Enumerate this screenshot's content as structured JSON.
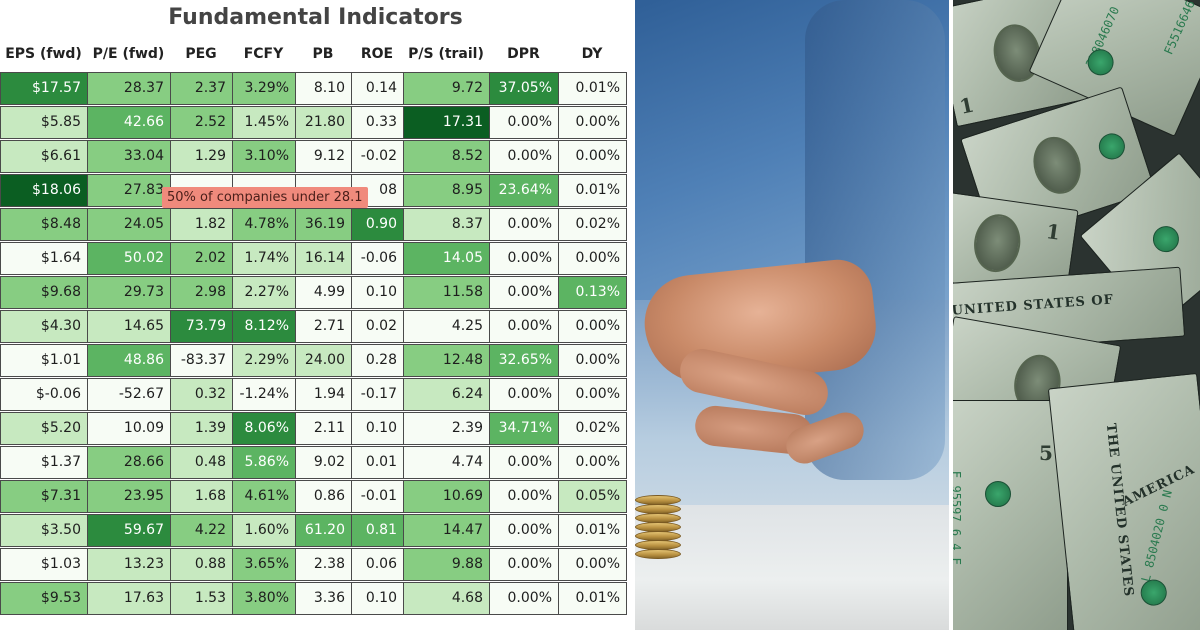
{
  "table": {
    "title": "Fundamental Indicators",
    "columns": [
      "EPS (fwd)",
      "P/E (fwd)",
      "PEG",
      "FCFY",
      "PB",
      "ROE",
      "P/S (trail)",
      "DPR",
      "DY"
    ],
    "rows": [
      [
        "$17.57",
        "28.37",
        "2.37",
        "3.29%",
        "8.10",
        "0.14",
        "9.72",
        "37.05%",
        "0.01%"
      ],
      [
        "$5.85",
        "42.66",
        "2.52",
        "1.45%",
        "21.80",
        "0.33",
        "17.31",
        "0.00%",
        "0.00%"
      ],
      [
        "$6.61",
        "33.04",
        "1.29",
        "3.10%",
        "9.12",
        "-0.02",
        "8.52",
        "0.00%",
        "0.00%"
      ],
      [
        "$18.06",
        "27.83",
        "",
        "",
        "",
        "08",
        "8.95",
        "23.64%",
        "0.01%"
      ],
      [
        "$8.48",
        "24.05",
        "1.82",
        "4.78%",
        "36.19",
        "0.90",
        "8.37",
        "0.00%",
        "0.02%"
      ],
      [
        "$1.64",
        "50.02",
        "2.02",
        "1.74%",
        "16.14",
        "-0.06",
        "14.05",
        "0.00%",
        "0.00%"
      ],
      [
        "$9.68",
        "29.73",
        "2.98",
        "2.27%",
        "4.99",
        "0.10",
        "11.58",
        "0.00%",
        "0.13%"
      ],
      [
        "$4.30",
        "14.65",
        "73.79",
        "8.12%",
        "2.71",
        "0.02",
        "4.25",
        "0.00%",
        "0.00%"
      ],
      [
        "$1.01",
        "48.86",
        "-83.37",
        "2.29%",
        "24.00",
        "0.28",
        "12.48",
        "32.65%",
        "0.00%"
      ],
      [
        "$-0.06",
        "-52.67",
        "0.32",
        "-1.24%",
        "1.94",
        "-0.17",
        "6.24",
        "0.00%",
        "0.00%"
      ],
      [
        "$5.20",
        "10.09",
        "1.39",
        "8.06%",
        "2.11",
        "0.10",
        "2.39",
        "34.71%",
        "0.02%"
      ],
      [
        "$1.37",
        "28.66",
        "0.48",
        "5.86%",
        "9.02",
        "0.01",
        "4.74",
        "0.00%",
        "0.00%"
      ],
      [
        "$7.31",
        "23.95",
        "1.68",
        "4.61%",
        "0.86",
        "-0.01",
        "10.69",
        "0.00%",
        "0.05%"
      ],
      [
        "$3.50",
        "59.67",
        "4.22",
        "1.60%",
        "61.20",
        "0.81",
        "14.47",
        "0.00%",
        "0.01%"
      ],
      [
        "$1.03",
        "13.23",
        "0.88",
        "3.65%",
        "2.38",
        "0.06",
        "9.88",
        "0.00%",
        "0.00%"
      ],
      [
        "$9.53",
        "17.63",
        "1.53",
        "3.80%",
        "3.36",
        "0.10",
        "4.68",
        "0.00%",
        "0.01%"
      ]
    ],
    "shades": [
      [
        4,
        2,
        2,
        2,
        0,
        0,
        2,
        4,
        0
      ],
      [
        1,
        3,
        2,
        1,
        1,
        0,
        5,
        0,
        0
      ],
      [
        1,
        2,
        1,
        2,
        0,
        0,
        2,
        0,
        0
      ],
      [
        5,
        2,
        0,
        0,
        0,
        0,
        2,
        3,
        0
      ],
      [
        2,
        2,
        1,
        2,
        2,
        4,
        1,
        0,
        0
      ],
      [
        0,
        3,
        2,
        1,
        1,
        0,
        3,
        0,
        0
      ],
      [
        2,
        2,
        2,
        1,
        0,
        0,
        2,
        0,
        3
      ],
      [
        1,
        1,
        4,
        4,
        0,
        0,
        0,
        0,
        0
      ],
      [
        0,
        3,
        0,
        1,
        1,
        0,
        2,
        3,
        0
      ],
      [
        0,
        0,
        1,
        0,
        0,
        0,
        1,
        0,
        0
      ],
      [
        1,
        0,
        1,
        4,
        0,
        0,
        0,
        3,
        0
      ],
      [
        0,
        2,
        1,
        3,
        0,
        0,
        0,
        0,
        0
      ],
      [
        2,
        2,
        1,
        2,
        0,
        0,
        2,
        0,
        1
      ],
      [
        1,
        4,
        2,
        1,
        3,
        3,
        2,
        0,
        0
      ],
      [
        0,
        1,
        1,
        2,
        0,
        0,
        2,
        0,
        0
      ],
      [
        2,
        1,
        1,
        2,
        0,
        0,
        1,
        0,
        0
      ]
    ],
    "palette": [
      "#f7fcf5",
      "#c7e9c0",
      "#87cd82",
      "#5cb462",
      "#2c8b3e",
      "#0b5e22"
    ],
    "tooltip": "50% of companies under 28.1"
  },
  "money": {
    "bill_text": "UNITED STATES OF",
    "serials": [
      "3L8046070",
      "F5516646",
      "E 95597 6 4 E",
      "L 8504020 0 N"
    ],
    "series_text": "THE UNITED STATES",
    "america_text": "AMERICA"
  }
}
